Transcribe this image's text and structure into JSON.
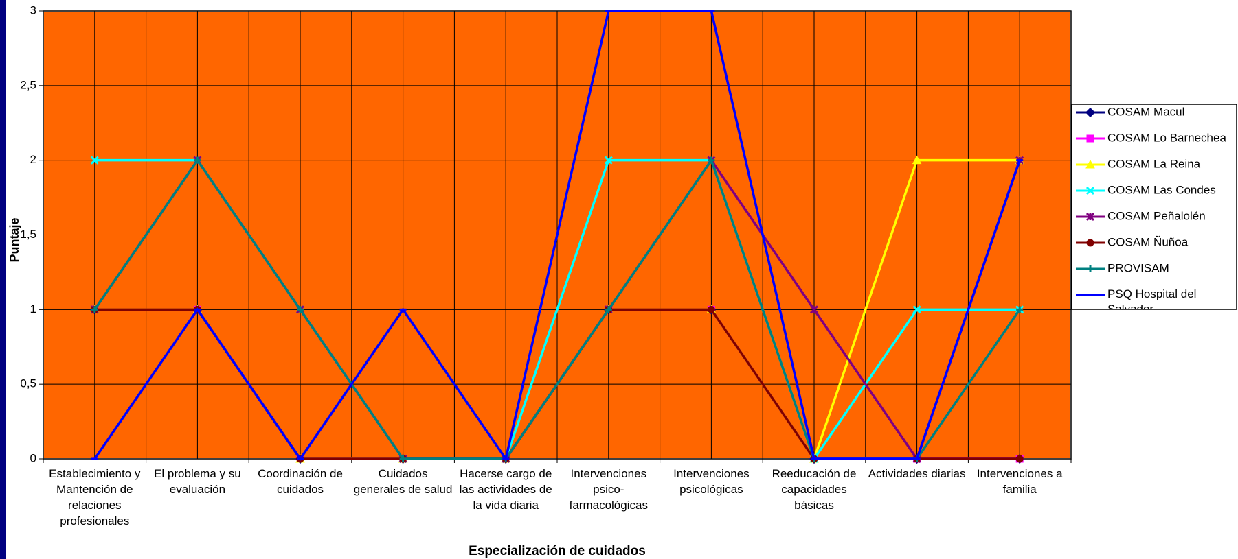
{
  "chart_data": {
    "type": "line",
    "x_label": "Especialización  de cuidados",
    "y_label": "Puntaje",
    "categories": [
      "Establecimiento y Mantención de relaciones profesionales",
      "El problema y su evaluación",
      "Coordinación de cuidados",
      "Cuidados generales de salud",
      "Hacerse cargo de las actividades de la vida diaria",
      "Intervenciones psico-farmacológicas",
      "Intervenciones psicológicas",
      "Reeducación de capacidades básicas",
      "Actividades diarias",
      "Intervenciones a familia"
    ],
    "ylim": [
      0,
      3
    ],
    "yticks": [
      0,
      {
        "value": 0.5,
        "label": "0,5"
      },
      1,
      {
        "value": 1.5,
        "label": "1,5"
      },
      2,
      {
        "value": 2.5,
        "label": "2,5"
      },
      3
    ],
    "grid": true,
    "plot_background": "#ff6600",
    "legend": "right",
    "series": [
      {
        "name": "COSAM Macul",
        "color": "#000080",
        "marker": "diamond",
        "values": [
          1,
          1,
          0,
          0,
          0,
          1,
          1,
          0,
          0,
          0
        ]
      },
      {
        "name": "COSAM Lo Barnechea",
        "color": "#ff00ff",
        "marker": "square",
        "values": [
          1,
          1,
          0,
          0,
          0,
          1,
          1,
          0,
          0,
          0
        ]
      },
      {
        "name": "COSAM La Reina",
        "color": "#ffff00",
        "marker": "triangle",
        "values": [
          1,
          1,
          0,
          0,
          0,
          1,
          1,
          0,
          2,
          2
        ]
      },
      {
        "name": "COSAM Las Condes",
        "color": "#00ffff",
        "marker": "x",
        "values": [
          2,
          2,
          1,
          0,
          0,
          2,
          2,
          0,
          1,
          1
        ]
      },
      {
        "name": "COSAM Peñalolén",
        "color": "#800080",
        "marker": "star",
        "values": [
          1,
          2,
          1,
          0,
          0,
          1,
          2,
          1,
          0,
          2
        ]
      },
      {
        "name": "COSAM Ñuñoa",
        "color": "#800000",
        "marker": "circle",
        "values": [
          1,
          1,
          0,
          0,
          0,
          1,
          1,
          0,
          0,
          0
        ]
      },
      {
        "name": "PROVISAM",
        "color": "#008080",
        "marker": "plus",
        "values": [
          1,
          2,
          1,
          0,
          0,
          1,
          2,
          0,
          0,
          1
        ]
      },
      {
        "name": "PSQ Hospital del Salvador",
        "color": "#0000ff",
        "marker": "dash",
        "values": [
          0,
          1,
          0,
          1,
          0,
          3,
          3,
          0,
          0,
          2
        ]
      }
    ]
  }
}
